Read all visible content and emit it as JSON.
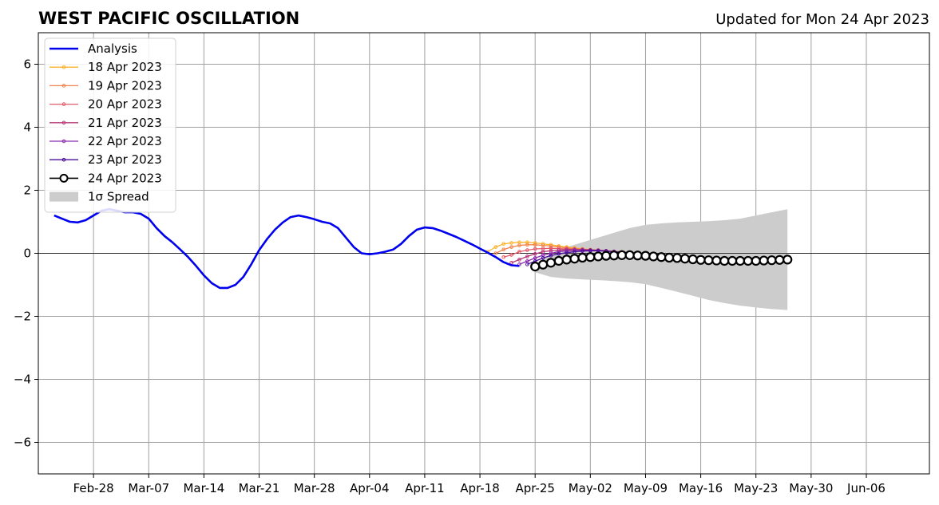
{
  "chart_data": {
    "type": "line",
    "title": "WEST PACIFIC OSCILLATION",
    "subtitle": "Updated for Mon 24 Apr 2023",
    "xlabel": "",
    "ylabel": "",
    "x_range_days": [
      "2023-02-21",
      "2023-06-14"
    ],
    "ylim": [
      -7,
      7
    ],
    "yticks": [
      -6,
      -4,
      -2,
      0,
      2,
      4,
      6
    ],
    "ytick_labels": [
      "−6",
      "−4",
      "−2",
      "0",
      "2",
      "4",
      "6"
    ],
    "xticks": [
      "2023-02-28",
      "2023-03-07",
      "2023-03-14",
      "2023-03-21",
      "2023-03-28",
      "2023-04-04",
      "2023-04-11",
      "2023-04-18",
      "2023-04-25",
      "2023-05-02",
      "2023-05-09",
      "2023-05-16",
      "2023-05-23",
      "2023-05-30",
      "2023-06-06"
    ],
    "xtick_labels": [
      "Feb-28",
      "Mar-07",
      "Mar-14",
      "Mar-21",
      "Mar-28",
      "Apr-04",
      "Apr-11",
      "Apr-18",
      "Apr-25",
      "May-02",
      "May-09",
      "May-16",
      "May-23",
      "May-30",
      "Jun-06"
    ],
    "grid": true,
    "legend_position": "top-left",
    "zero_line": true,
    "colors": {
      "analysis": "#0000ee",
      "spread": "#cccccc",
      "grid": "#a0a0a0"
    },
    "analysis": {
      "name": "Analysis",
      "start": "2023-02-23",
      "points": [
        [
          "2023-02-23",
          1.2
        ],
        [
          "2023-02-24",
          1.1
        ],
        [
          "2023-02-25",
          1.0
        ],
        [
          "2023-02-26",
          0.98
        ],
        [
          "2023-02-27",
          1.05
        ],
        [
          "2023-02-28",
          1.2
        ],
        [
          "2023-03-01",
          1.35
        ],
        [
          "2023-03-02",
          1.4
        ],
        [
          "2023-03-03",
          1.35
        ],
        [
          "2023-03-04",
          1.3
        ],
        [
          "2023-03-05",
          1.3
        ],
        [
          "2023-03-06",
          1.25
        ],
        [
          "2023-03-07",
          1.1
        ],
        [
          "2023-03-08",
          0.8
        ],
        [
          "2023-03-09",
          0.55
        ],
        [
          "2023-03-10",
          0.35
        ],
        [
          "2023-03-11",
          0.12
        ],
        [
          "2023-03-12",
          -0.12
        ],
        [
          "2023-03-13",
          -0.4
        ],
        [
          "2023-03-14",
          -0.7
        ],
        [
          "2023-03-15",
          -0.95
        ],
        [
          "2023-03-16",
          -1.1
        ],
        [
          "2023-03-17",
          -1.1
        ],
        [
          "2023-03-18",
          -1.0
        ],
        [
          "2023-03-19",
          -0.75
        ],
        [
          "2023-03-20",
          -0.35
        ],
        [
          "2023-03-21",
          0.1
        ],
        [
          "2023-03-22",
          0.45
        ],
        [
          "2023-03-23",
          0.75
        ],
        [
          "2023-03-24",
          0.98
        ],
        [
          "2023-03-25",
          1.15
        ],
        [
          "2023-03-26",
          1.2
        ],
        [
          "2023-03-27",
          1.15
        ],
        [
          "2023-03-28",
          1.08
        ],
        [
          "2023-03-29",
          1.0
        ],
        [
          "2023-03-30",
          0.95
        ],
        [
          "2023-03-31",
          0.8
        ],
        [
          "2023-04-01",
          0.5
        ],
        [
          "2023-04-02",
          0.2
        ],
        [
          "2023-04-03",
          0.0
        ],
        [
          "2023-04-04",
          -0.03
        ],
        [
          "2023-04-05",
          0.0
        ],
        [
          "2023-04-06",
          0.05
        ],
        [
          "2023-04-07",
          0.12
        ],
        [
          "2023-04-08",
          0.3
        ],
        [
          "2023-04-09",
          0.55
        ],
        [
          "2023-04-10",
          0.75
        ],
        [
          "2023-04-11",
          0.82
        ],
        [
          "2023-04-12",
          0.8
        ],
        [
          "2023-04-13",
          0.72
        ],
        [
          "2023-04-14",
          0.62
        ],
        [
          "2023-04-15",
          0.52
        ],
        [
          "2023-04-16",
          0.4
        ],
        [
          "2023-04-17",
          0.28
        ],
        [
          "2023-04-18",
          0.15
        ],
        [
          "2023-04-19",
          0.02
        ],
        [
          "2023-04-20",
          -0.12
        ],
        [
          "2023-04-21",
          -0.28
        ],
        [
          "2023-04-22",
          -0.38
        ],
        [
          "2023-04-23",
          -0.4
        ]
      ]
    },
    "spread": {
      "name": "1σ Spread",
      "start": "2023-04-25",
      "end": "2023-05-27",
      "upper": [
        -0.4,
        0.0,
        0.2,
        0.35,
        0.5,
        0.65,
        0.8,
        0.9,
        0.95,
        0.98,
        1.0,
        1.02,
        1.05,
        1.1,
        1.2,
        1.3,
        1.4
      ],
      "lower": [
        -0.6,
        -0.75,
        -0.8,
        -0.83,
        -0.85,
        -0.88,
        -0.92,
        -0.98,
        -1.1,
        -1.22,
        -1.35,
        -1.48,
        -1.58,
        -1.66,
        -1.72,
        -1.77,
        -1.8
      ]
    },
    "series": [
      {
        "name": "18 Apr 2023",
        "color": "#fcb32f",
        "marker": "dot",
        "start": "2023-04-19",
        "values": [
          0.05,
          0.2,
          0.3,
          0.33,
          0.35,
          0.35,
          0.33,
          0.3,
          0.27,
          0.23,
          0.2,
          0.17,
          0.14,
          0.12,
          0.1,
          0.08,
          0.06,
          0.04,
          0.02,
          0.0
        ]
      },
      {
        "name": "19 Apr 2023",
        "color": "#f2844b",
        "marker": "dot",
        "start": "2023-04-20",
        "values": [
          0.0,
          0.12,
          0.2,
          0.25,
          0.27,
          0.27,
          0.25,
          0.23,
          0.2,
          0.17,
          0.15,
          0.13,
          0.11,
          0.09,
          0.07,
          0.05,
          0.04,
          0.02,
          0.0
        ]
      },
      {
        "name": "20 Apr 2023",
        "color": "#e35a6a",
        "marker": "dot",
        "start": "2023-04-21",
        "values": [
          -0.12,
          -0.05,
          0.05,
          0.1,
          0.14,
          0.15,
          0.16,
          0.15,
          0.14,
          0.13,
          0.12,
          0.1,
          0.09,
          0.07,
          0.05,
          0.03,
          0.01,
          0.0
        ]
      },
      {
        "name": "21 Apr 2023",
        "color": "#b73779",
        "marker": "dot",
        "start": "2023-04-22",
        "values": [
          -0.3,
          -0.2,
          -0.1,
          -0.02,
          0.05,
          0.08,
          0.1,
          0.12,
          0.12,
          0.12,
          0.11,
          0.1,
          0.08,
          0.06,
          0.04,
          0.02,
          0.0
        ]
      },
      {
        "name": "22 Apr 2023",
        "color": "#8c2aad",
        "marker": "dot",
        "start": "2023-04-23",
        "values": [
          -0.35,
          -0.25,
          -0.15,
          -0.06,
          0.0,
          0.05,
          0.08,
          0.1,
          0.1,
          0.1,
          0.09,
          0.07,
          0.05,
          0.03,
          0.01,
          0.0
        ]
      },
      {
        "name": "23 Apr 2023",
        "color": "#4b0c9b",
        "marker": "dot",
        "start": "2023-04-24",
        "values": [
          -0.35,
          -0.25,
          -0.15,
          -0.07,
          -0.02,
          0.02,
          0.05,
          0.07,
          0.08,
          0.08,
          0.07,
          0.05,
          0.03,
          0.01,
          0.0
        ]
      },
      {
        "name": "24 Apr 2023",
        "color": "#000000",
        "marker": "circle",
        "start": "2023-04-25",
        "values": [
          -0.42,
          -0.36,
          -0.3,
          -0.24,
          -0.2,
          -0.17,
          -0.14,
          -0.12,
          -0.1,
          -0.08,
          -0.07,
          -0.06,
          -0.06,
          -0.07,
          -0.08,
          -0.1,
          -0.12,
          -0.14,
          -0.15,
          -0.17,
          -0.19,
          -0.21,
          -0.22,
          -0.23,
          -0.24,
          -0.24,
          -0.24,
          -0.24,
          -0.24,
          -0.23,
          -0.22,
          -0.21,
          -0.2
        ]
      }
    ]
  }
}
